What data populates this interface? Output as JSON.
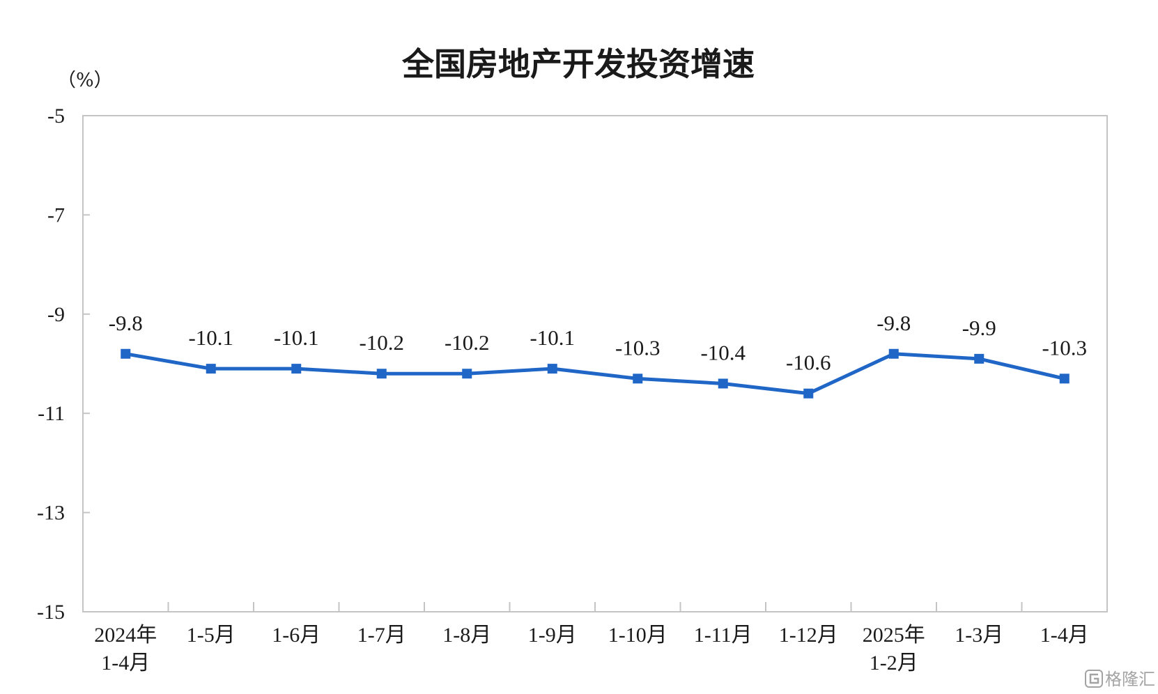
{
  "chart_data": {
    "type": "line",
    "title": "全国房地产开发投资增速",
    "unit_label": "（%）",
    "categories": [
      [
        "2024年",
        "1-4月"
      ],
      [
        "1-5月"
      ],
      [
        "1-6月"
      ],
      [
        "1-7月"
      ],
      [
        "1-8月"
      ],
      [
        "1-9月"
      ],
      [
        "1-10月"
      ],
      [
        "1-11月"
      ],
      [
        "1-12月"
      ],
      [
        "2025年",
        "1-2月"
      ],
      [
        "1-3月"
      ],
      [
        "1-4月"
      ]
    ],
    "series": [
      {
        "values": [
          -9.8,
          -10.1,
          -10.1,
          -10.2,
          -10.2,
          -10.1,
          -10.3,
          -10.4,
          -10.6,
          -9.8,
          -9.9,
          -10.3
        ],
        "labels": [
          "-9.8",
          "-10.1",
          "-10.1",
          "-10.2",
          "-10.2",
          "-10.1",
          "-10.3",
          "-10.4",
          "-10.6",
          "-9.8",
          "-9.9",
          "-10.3"
        ],
        "color": "#1f66c7"
      }
    ],
    "yticks": [
      "-5",
      "-7",
      "-9",
      "-11",
      "-13",
      "-15"
    ],
    "ylim": [
      -15,
      -5
    ],
    "grid": false,
    "legend": "none"
  },
  "watermark": {
    "text": "格隆汇",
    "icon": "gelonghui-logo-icon"
  }
}
